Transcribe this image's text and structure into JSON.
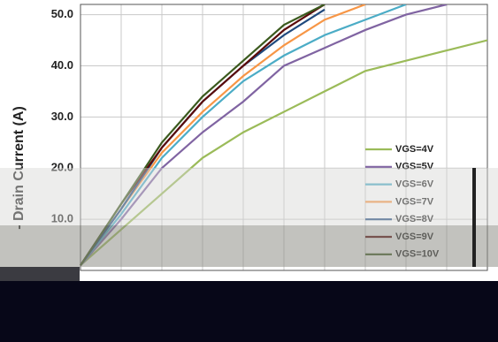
{
  "chart_data": {
    "type": "line",
    "y_label": "- Drain Current (A)",
    "x": [
      0,
      1,
      2,
      3,
      4,
      5,
      6,
      7,
      8,
      9,
      10
    ],
    "xlim": [
      0,
      10
    ],
    "xticks": [
      0,
      1,
      2,
      3,
      4,
      5,
      6,
      7,
      8,
      9,
      10
    ],
    "ylim": [
      0,
      52
    ],
    "yticks": [
      {
        "value": 10,
        "label": "10.0"
      },
      {
        "value": 20,
        "label": "20.0"
      },
      {
        "value": 30,
        "label": "30.0"
      },
      {
        "value": 40,
        "label": "40.0"
      },
      {
        "value": 50,
        "label": "50.0"
      }
    ],
    "grid": true,
    "legend": "lower right",
    "series": [
      {
        "name": "VGS=4V",
        "color": "#9bbb59",
        "values": [
          1,
          8,
          15,
          22,
          27,
          31,
          35,
          39,
          41,
          43,
          45
        ]
      },
      {
        "name": "VGS=5V",
        "color": "#8064a2",
        "values": [
          1,
          10,
          20,
          27,
          33,
          40,
          43.5,
          47,
          50,
          52,
          null
        ]
      },
      {
        "name": "VGS=6V",
        "color": "#4bacc6",
        "values": [
          1,
          11,
          22,
          30,
          37,
          42,
          46,
          49,
          52,
          null,
          null
        ]
      },
      {
        "name": "VGS=7V",
        "color": "#f79646",
        "values": [
          1,
          12,
          23,
          31,
          38,
          44,
          49,
          52,
          null,
          null,
          null
        ]
      },
      {
        "name": "VGS=8V",
        "color": "#1f497d",
        "values": [
          1,
          12,
          24,
          33,
          40,
          46,
          51,
          null,
          null,
          null,
          null
        ]
      },
      {
        "name": "VGS=9V",
        "color": "#5a0a0a",
        "values": [
          1,
          13,
          24,
          33,
          40,
          47,
          52,
          null,
          null,
          null,
          null
        ]
      },
      {
        "name": "VGS=10V",
        "color": "#3b5a1e",
        "values": [
          1,
          13,
          25,
          34,
          41,
          48,
          52,
          null,
          null,
          null,
          null
        ]
      }
    ]
  }
}
